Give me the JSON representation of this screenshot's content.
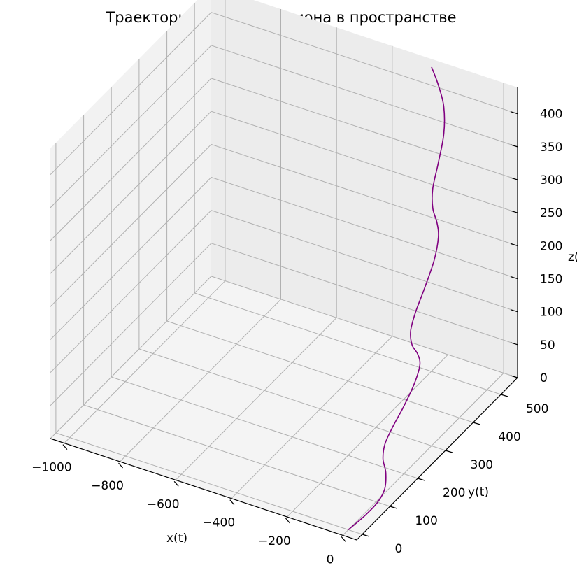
{
  "chart_data": {
    "type": "line",
    "projection": "3d",
    "title": "Траектория движения диона в пространстве",
    "xlabel": "x(t)",
    "ylabel": "y(t)",
    "zlabel": "z(t)",
    "xlim": [
      -1050,
      50
    ],
    "ylim": [
      -20,
      560
    ],
    "zlim": [
      0,
      440
    ],
    "xticks": [
      -1000,
      -800,
      -600,
      -400,
      -200,
      0
    ],
    "xtick_labels": [
      "−1000",
      "−800",
      "−600",
      "−400",
      "−200",
      "0"
    ],
    "yticks": [
      0,
      100,
      200,
      300,
      400,
      500
    ],
    "ytick_labels": [
      "0",
      "100",
      "200",
      "300",
      "400",
      "500"
    ],
    "zticks": [
      0,
      50,
      100,
      150,
      200,
      250,
      300,
      350,
      400
    ],
    "ztick_labels": [
      "0",
      "50",
      "100",
      "150",
      "200",
      "250",
      "300",
      "350",
      "400"
    ],
    "grid": true,
    "series": [
      {
        "color": "#800080",
        "points": [
          {
            "x": 0,
            "y": 0,
            "z": 0
          },
          {
            "x": 28,
            "y": 30,
            "z": 12
          },
          {
            "x": 50,
            "y": 55,
            "z": 25
          },
          {
            "x": 56,
            "y": 75,
            "z": 38
          },
          {
            "x": 40,
            "y": 95,
            "z": 52
          },
          {
            "x": 15,
            "y": 110,
            "z": 63
          },
          {
            "x": 2,
            "y": 130,
            "z": 75
          },
          {
            "x": 0,
            "y": 160,
            "z": 88
          },
          {
            "x": 5,
            "y": 195,
            "z": 105
          },
          {
            "x": 8,
            "y": 230,
            "z": 125
          },
          {
            "x": 3,
            "y": 255,
            "z": 142
          },
          {
            "x": -15,
            "y": 265,
            "z": 152
          },
          {
            "x": -40,
            "y": 270,
            "z": 160
          },
          {
            "x": -60,
            "y": 285,
            "z": 172
          },
          {
            "x": -68,
            "y": 310,
            "z": 188
          },
          {
            "x": -70,
            "y": 345,
            "z": 210
          },
          {
            "x": -75,
            "y": 385,
            "z": 235
          },
          {
            "x": -90,
            "y": 415,
            "z": 255
          },
          {
            "x": -110,
            "y": 430,
            "z": 268
          },
          {
            "x": -135,
            "y": 440,
            "z": 282
          },
          {
            "x": -155,
            "y": 460,
            "z": 300
          },
          {
            "x": -165,
            "y": 490,
            "z": 325
          },
          {
            "x": -175,
            "y": 520,
            "z": 355
          },
          {
            "x": -195,
            "y": 540,
            "z": 385
          },
          {
            "x": -225,
            "y": 550,
            "z": 410
          },
          {
            "x": -255,
            "y": 556,
            "z": 430
          }
        ]
      }
    ]
  }
}
